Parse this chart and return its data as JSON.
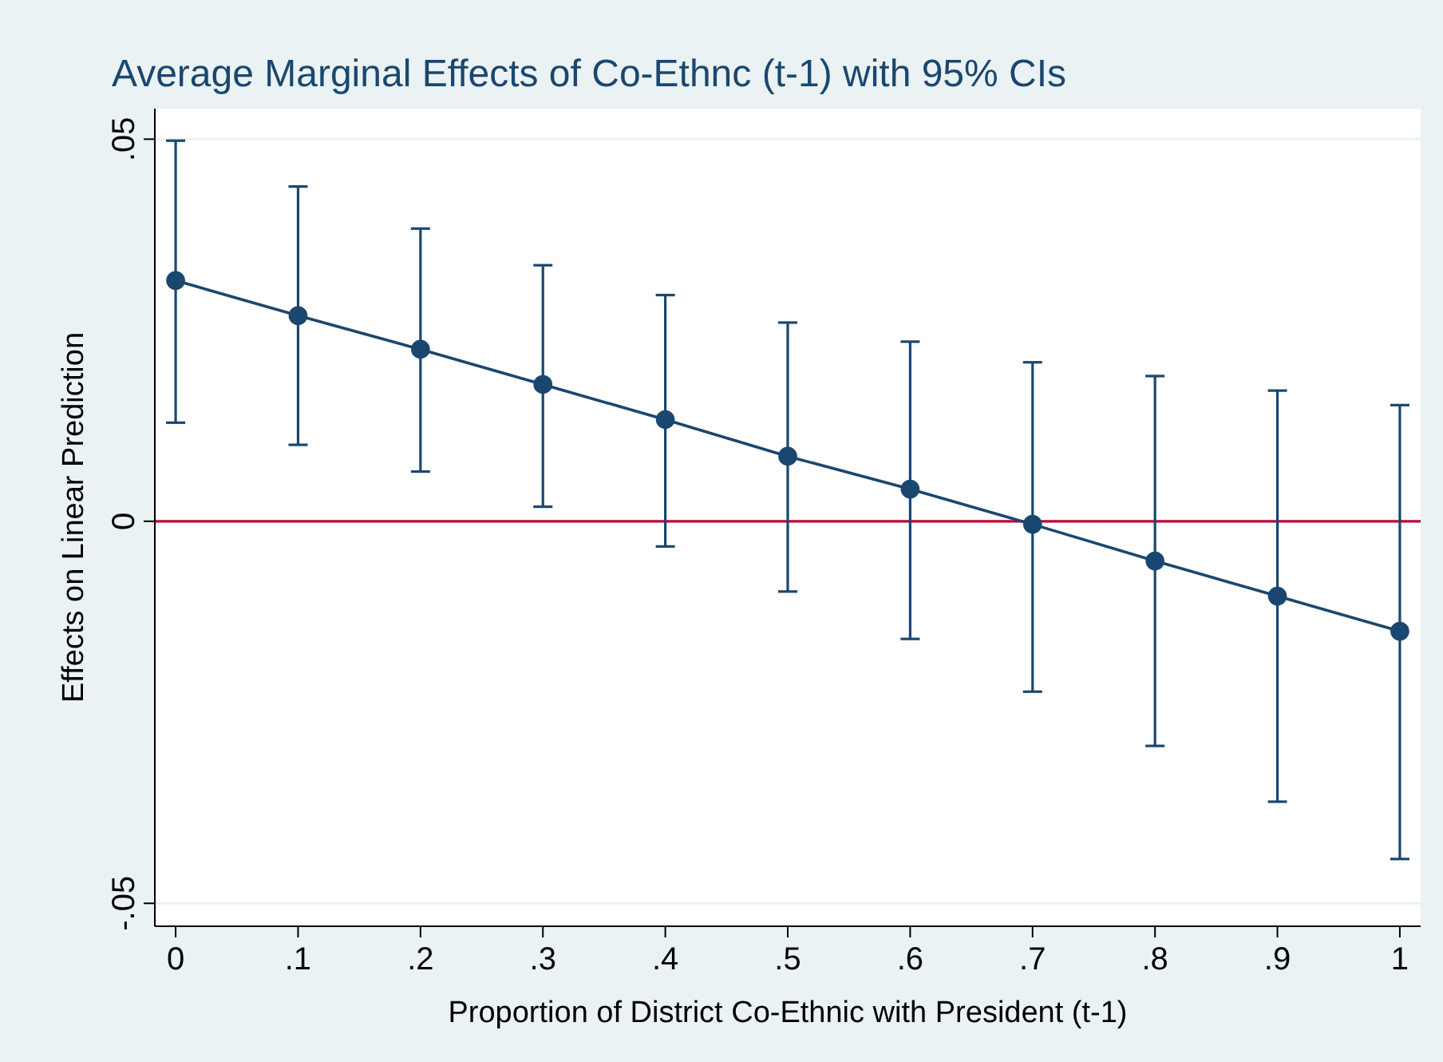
{
  "chart_data": {
    "type": "line",
    "title": "Average Marginal Effects of Co-Ethnc (t-1) with 95% CIs",
    "xlabel": "Proportion of District Co-Ethnic with President (t-1)",
    "ylabel": "Effects on Linear Prediction",
    "x": [
      0,
      0.1,
      0.2,
      0.3,
      0.4,
      0.5,
      0.6,
      0.7,
      0.8,
      0.9,
      1
    ],
    "series": [
      {
        "color": "#1a476f",
        "values": [
          0.0315,
          0.0269,
          0.0225,
          0.0179,
          0.0133,
          0.0085,
          0.0042,
          -0.0004,
          -0.0052,
          -0.0098,
          -0.0144
        ],
        "errors": [
          [
            0.0129,
            0.0498
          ],
          [
            0.01,
            0.0438
          ],
          [
            0.0065,
            0.0383
          ],
          [
            0.0019,
            0.0335
          ],
          [
            -0.0033,
            0.0296
          ],
          [
            -0.0092,
            0.026
          ],
          [
            -0.0154,
            0.0235
          ],
          [
            -0.0223,
            0.0208
          ],
          [
            -0.0294,
            0.019
          ],
          [
            -0.0367,
            0.0171
          ],
          [
            -0.0442,
            0.0152
          ]
        ]
      }
    ],
    "xlim": [
      -0.017,
      1.017
    ],
    "ylim": [
      -0.053,
      0.054
    ],
    "xticks": [
      0,
      {
        "value": 0.1,
        "label": ".1"
      },
      {
        "value": 0.2,
        "label": ".2"
      },
      {
        "value": 0.3,
        "label": ".3"
      },
      {
        "value": 0.4,
        "label": ".4"
      },
      {
        "value": 0.5,
        "label": ".5"
      },
      {
        "value": 0.6,
        "label": ".6"
      },
      {
        "value": 0.7,
        "label": ".7"
      },
      {
        "value": 0.8,
        "label": ".8"
      },
      {
        "value": 0.9,
        "label": ".9"
      },
      1
    ],
    "yticks": [
      {
        "value": -0.05,
        "label": "-.05"
      },
      0,
      {
        "value": 0.05,
        "label": ".05"
      }
    ],
    "ref_lines": [
      {
        "axis": "y",
        "value": 0,
        "color": "#c10534"
      }
    ],
    "grid": "y",
    "marker": "circle",
    "line_style": "solid"
  }
}
